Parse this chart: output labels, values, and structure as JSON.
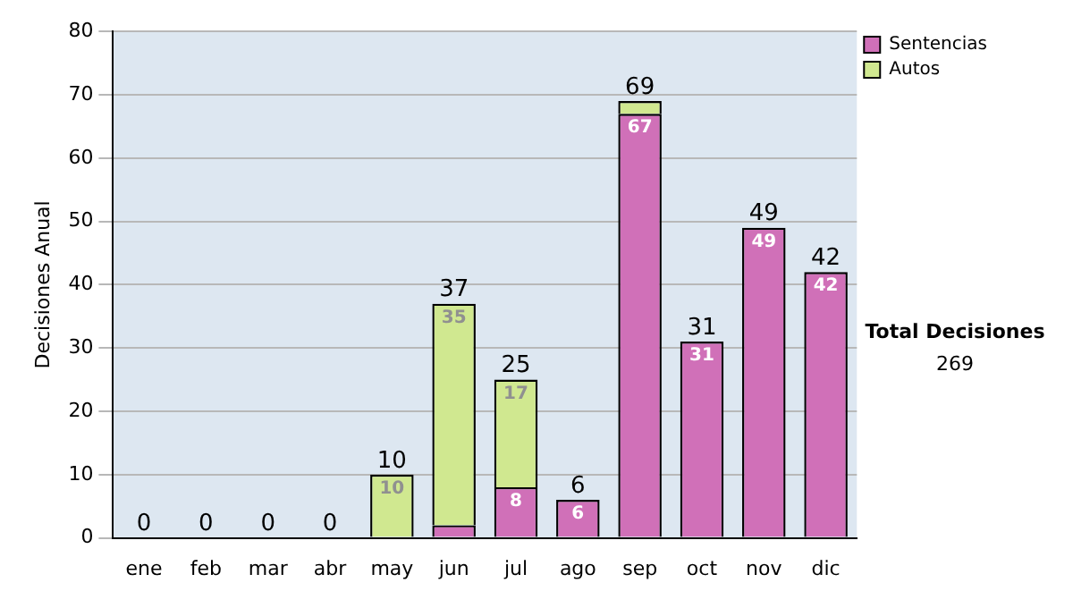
{
  "chart_data": {
    "type": "bar",
    "stacked": true,
    "ylabel": "Decisiones Anual",
    "categories": [
      "ene",
      "feb",
      "mar",
      "abr",
      "may",
      "jun",
      "jul",
      "ago",
      "sep",
      "oct",
      "nov",
      "dic"
    ],
    "series": [
      {
        "name": "Sentencias",
        "color": "#d070b8",
        "values": [
          0,
          0,
          0,
          0,
          0,
          2,
          8,
          6,
          67,
          31,
          49,
          42
        ],
        "value_labels": [
          null,
          null,
          null,
          null,
          null,
          null,
          "8",
          "6",
          "67",
          "31",
          "49",
          "42"
        ]
      },
      {
        "name": "Autos",
        "color": "#d0e890",
        "values": [
          0,
          0,
          0,
          0,
          10,
          35,
          17,
          0,
          2,
          0,
          0,
          0
        ],
        "value_labels": [
          null,
          null,
          null,
          null,
          "10",
          "35",
          "17",
          null,
          null,
          null,
          null,
          null
        ]
      }
    ],
    "totals": [
      "0",
      "0",
      "0",
      "0",
      "10",
      "37",
      "25",
      "6",
      "69",
      "31",
      "49",
      "42"
    ],
    "ylim": [
      0,
      80
    ],
    "yticks": [
      0,
      10,
      20,
      30,
      40,
      50,
      60,
      70,
      80
    ],
    "grid": "y",
    "legend": "right",
    "annotations": [
      "Total Decisiones",
      "269"
    ]
  }
}
